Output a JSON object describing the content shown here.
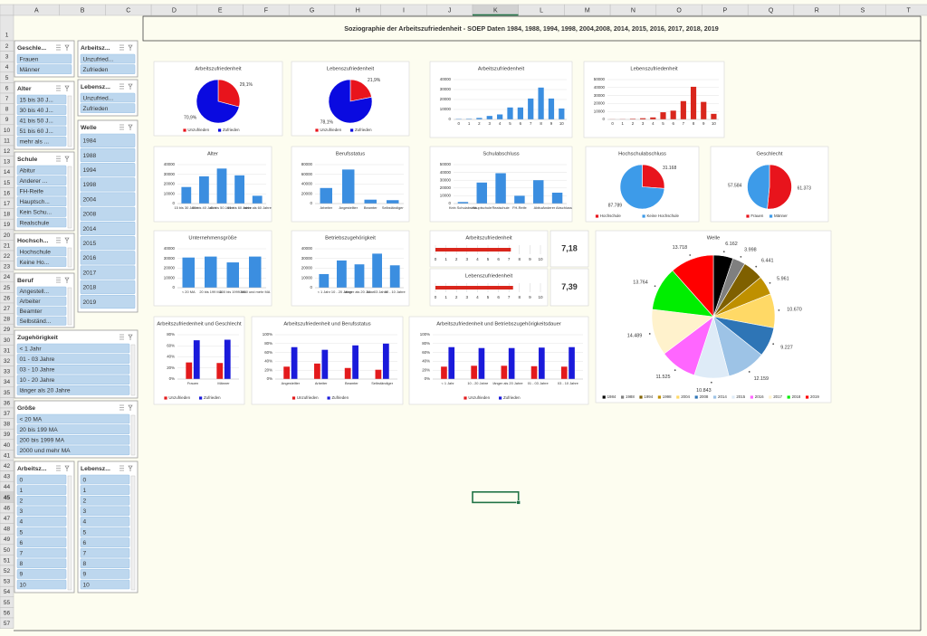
{
  "sheet": {
    "columns": [
      "A",
      "B",
      "C",
      "D",
      "E",
      "F",
      "G",
      "H",
      "I",
      "J",
      "K",
      "L",
      "M",
      "N",
      "O",
      "P",
      "Q",
      "R",
      "S",
      "T"
    ],
    "rows": [
      1,
      2,
      3,
      4,
      5,
      6,
      7,
      8,
      9,
      10,
      11,
      12,
      13,
      14,
      15,
      16,
      17,
      18,
      19,
      20,
      21,
      22,
      23,
      24,
      25,
      26,
      27,
      28,
      29,
      30,
      31,
      32,
      33,
      34,
      35,
      36,
      37,
      38,
      39,
      40,
      41,
      42,
      43,
      44,
      45,
      46,
      47,
      48,
      49,
      50,
      51,
      52,
      53,
      54,
      55,
      56,
      57
    ],
    "title": "Soziographie der Arbeitszufriedenheit - SOEP Daten 1984, 1988, 1994, 1998, 2004,2008, 2014, 2015, 2016, 2017, 2018, 2019"
  },
  "slicers": [
    {
      "title": "Geschle...",
      "items": [
        "Frauen",
        "Männer"
      ]
    },
    {
      "title": "Arbeitsz...",
      "items": [
        "Unzufried...",
        "Zufrieden"
      ]
    },
    {
      "title": "Alter",
      "items": [
        "15 bis 30 J...",
        "30 bis 40 J...",
        "41 bis 50 J...",
        "51 bis 60 J...",
        "mehr als ..."
      ]
    },
    {
      "title": "Lebensz...",
      "items": [
        "Unzufried...",
        "Zufrieden"
      ]
    },
    {
      "title": "Welle",
      "items": [
        "1984",
        "1988",
        "1994",
        "1998",
        "2004",
        "2008",
        "2014",
        "2015",
        "2016",
        "2017",
        "2018",
        "2019"
      ]
    },
    {
      "title": "Schule",
      "items": [
        "Abitur",
        "Anderer ...",
        "FH-Reife",
        "Hauptsch...",
        "Kein Schu...",
        "Realschule"
      ]
    },
    {
      "title": "Hochsch...",
      "items": [
        "Hochschule",
        "Keine Ho..."
      ]
    },
    {
      "title": "Beruf",
      "items": [
        "Angestell...",
        "Arbeiter",
        "Beamter",
        "Selbständ..."
      ]
    },
    {
      "title": "Zugehörigkeit",
      "items": [
        "< 1 Jahr",
        "01 - 03 Jahre",
        "03 - 10 Jahre",
        "10 - 20 Jahre",
        "länger als 20 Jahre"
      ]
    },
    {
      "title": "Größe",
      "items": [
        "< 20 MA",
        "20 bis 199 MA",
        "200 bis 1999 MA",
        "2000 und mehr MA"
      ]
    },
    {
      "title": "Arbeitsz...",
      "items": [
        "0",
        "1",
        "2",
        "3",
        "4",
        "5",
        "6",
        "7",
        "8",
        "9",
        "10"
      ]
    },
    {
      "title": "Lebensz...",
      "items": [
        "0",
        "1",
        "2",
        "3",
        "4",
        "5",
        "6",
        "7",
        "8",
        "9",
        "10"
      ]
    }
  ],
  "chart_data": [
    {
      "type": "pie",
      "title": "Arbeitszufriedenheit",
      "categories": [
        "Unzufrieden",
        "Zufrieden"
      ],
      "values": [
        29.1,
        70.9
      ],
      "value_labels": [
        "29,1%",
        "70,9%"
      ],
      "colors": [
        "#e8141c",
        "#0a0ae0"
      ],
      "legend": true
    },
    {
      "type": "pie",
      "title": "Lebenszufriedenheit",
      "categories": [
        "Unzufrieden",
        "Zufrieden"
      ],
      "values": [
        21.9,
        78.1
      ],
      "value_labels": [
        "21,9%",
        "78,1%"
      ],
      "colors": [
        "#e8141c",
        "#0a0ae0"
      ],
      "legend": true
    },
    {
      "type": "bar",
      "title": "Arbeitszufriedenheit",
      "categories": [
        0,
        1,
        2,
        3,
        4,
        5,
        6,
        7,
        8,
        9,
        10
      ],
      "values": [
        500,
        600,
        1500,
        3500,
        5000,
        12000,
        12000,
        21000,
        32000,
        21000,
        11000
      ],
      "color": "#3b8ee0",
      "ylim": [
        0,
        40000
      ],
      "yticks": [
        0,
        10000,
        20000,
        30000,
        40000
      ],
      "grid": true
    },
    {
      "type": "bar",
      "title": "Lebenszufriedenheit",
      "categories": [
        0,
        1,
        2,
        3,
        4,
        5,
        6,
        7,
        8,
        9,
        10
      ],
      "values": [
        200,
        300,
        800,
        1500,
        2500,
        9000,
        11000,
        23000,
        41000,
        22000,
        7000
      ],
      "color": "#d9261c",
      "ylim": [
        0,
        50000
      ],
      "yticks": [
        0,
        10000,
        20000,
        30000,
        40000,
        50000
      ],
      "grid": true
    },
    {
      "type": "bar",
      "title": "Alter",
      "categories": [
        "15 bis 30 Jahre",
        "30 bis 40 Jahre",
        "41 bis 50 Jahre",
        "51 bis 60 Jahre",
        "mehr als 60 Jahre"
      ],
      "values": [
        17000,
        28000,
        36000,
        29000,
        8000
      ],
      "color": "#3b8ee0",
      "ylim": [
        0,
        40000
      ],
      "yticks": [
        0,
        10000,
        20000,
        30000,
        40000
      ],
      "grid": true
    },
    {
      "type": "bar",
      "title": "Berufsstatus",
      "categories": [
        "Arbeiter",
        "Angestellter",
        "Beamter",
        "Selbständiger"
      ],
      "values": [
        32000,
        70000,
        8000,
        7000
      ],
      "color": "#3b8ee0",
      "ylim": [
        0,
        80000
      ],
      "yticks": [
        0,
        20000,
        40000,
        60000,
        80000
      ],
      "grid": true
    },
    {
      "type": "bar",
      "title": "Schulabschluss",
      "categories": [
        "Kein Schulabschl.",
        "Hauptschule",
        "Realschule",
        "FH-Reife",
        "Abitur",
        "Anderer Abschluss"
      ],
      "values": [
        2000,
        27000,
        39000,
        10000,
        30000,
        14000
      ],
      "color": "#3b8ee0",
      "ylim": [
        0,
        50000
      ],
      "yticks": [
        0,
        10000,
        20000,
        30000,
        40000,
        50000
      ],
      "grid": true
    },
    {
      "type": "pie",
      "title": "Hochschulabschluss",
      "categories": [
        "Hochschule",
        "Keine Hochschule"
      ],
      "values": [
        31168,
        87789
      ],
      "value_labels": [
        "31.168",
        "87.789"
      ],
      "colors": [
        "#e8141c",
        "#3d9be9"
      ],
      "legend": true
    },
    {
      "type": "pie",
      "title": "Geschlecht",
      "categories": [
        "Frauen",
        "Männer"
      ],
      "values": [
        61373,
        57584
      ],
      "value_labels": [
        "61.373",
        "57.584"
      ],
      "colors": [
        "#e8141c",
        "#3d9be9"
      ],
      "legend": true
    },
    {
      "type": "bar",
      "title": "Unternehmensgröße",
      "categories": [
        "< 20 MA",
        "20 bis 199 MA",
        "200 bis 1999 MA",
        "2000 und mehr MA"
      ],
      "values": [
        31000,
        32000,
        26000,
        32000
      ],
      "color": "#3b8ee0",
      "ylim": [
        0,
        40000
      ],
      "yticks": [
        0,
        10000,
        20000,
        30000,
        40000
      ],
      "grid": true
    },
    {
      "type": "bar",
      "title": "Betriebszugehörigkeit",
      "categories": [
        "< 1 Jahr",
        "10 - 20 Jahre",
        "länger als 20 Jahre",
        "01 - 03 Jahre",
        "03 - 10 Jahre"
      ],
      "values": [
        14000,
        28000,
        24000,
        35000,
        23000
      ],
      "color": "#3b8ee0",
      "ylim": [
        0,
        40000
      ],
      "yticks": [
        0,
        10000,
        20000,
        30000,
        40000
      ],
      "grid": true
    },
    {
      "type": "gauge",
      "title": "Arbeitszufriedenheit",
      "values": [
        7.18
      ],
      "value_labels": [
        "7,18"
      ],
      "color": "#d9261c",
      "xlim": [
        0,
        10
      ],
      "xticks": [
        0,
        1,
        2,
        3,
        4,
        5,
        6,
        7,
        8,
        9,
        10
      ]
    },
    {
      "type": "gauge",
      "title": "Lebenszufriedenheit",
      "values": [
        7.39
      ],
      "value_labels": [
        "7,39"
      ],
      "color": "#d9261c",
      "xlim": [
        0,
        10
      ],
      "xticks": [
        0,
        1,
        2,
        3,
        4,
        5,
        6,
        7,
        8,
        9,
        10
      ]
    },
    {
      "type": "pie",
      "title": "Welle",
      "categories": [
        1984,
        1988,
        1994,
        1998,
        2004,
        2008,
        2014,
        2015,
        2016,
        2017,
        2018,
        2019
      ],
      "values": [
        6162,
        3998,
        6441,
        5961,
        10670,
        9227,
        12159,
        10843,
        11525,
        14489,
        13764,
        13718
      ],
      "value_labels": [
        "6.162",
        "3.998",
        "6.441",
        "5.961",
        "10.670",
        "9.227",
        "12.159",
        "10.843",
        "11.525",
        "14.489",
        "13.764",
        "13.718"
      ],
      "colors": [
        "#000000",
        "#7f7f7f",
        "#7f6000",
        "#bf9000",
        "#ffd966",
        "#2e75b6",
        "#9dc3e6",
        "#deebf7",
        "#ff66ff",
        "#fff2cc",
        "#00ee00",
        "#ff0000"
      ],
      "legend": true
    },
    {
      "type": "bar",
      "title": "Arbeitszufriedenheit und Geschlecht",
      "categories": [
        "Frauen",
        "Männer"
      ],
      "series": [
        {
          "name": "Unzufrieden",
          "color": "#e31a1c",
          "values": [
            30,
            29
          ]
        },
        {
          "name": "Zufrieden",
          "color": "#1a1adb",
          "values": [
            70,
            71
          ]
        }
      ],
      "ylim": [
        0,
        80
      ],
      "yticks": [
        {
          "value": 0,
          "label": "0%"
        },
        {
          "value": 20,
          "label": "20%"
        },
        {
          "value": 40,
          "label": "40%"
        },
        {
          "value": 60,
          "label": "60%"
        },
        {
          "value": 80,
          "label": "80%"
        }
      ],
      "grid": true,
      "legend": true
    },
    {
      "type": "bar",
      "title": "Arbeitszufriedenheit und Berufsstatus",
      "categories": [
        "Angestellter",
        "Arbeiter",
        "Beamter",
        "Selbständiger"
      ],
      "series": [
        {
          "name": "Unzufrieden",
          "color": "#e31a1c",
          "values": [
            28,
            35,
            25,
            21
          ]
        },
        {
          "name": "Zufrieden",
          "color": "#1a1adb",
          "values": [
            72,
            66,
            76,
            80
          ]
        }
      ],
      "ylim": [
        0,
        100
      ],
      "yticks": [
        {
          "value": 0,
          "label": "0%"
        },
        {
          "value": 20,
          "label": "20%"
        },
        {
          "value": 40,
          "label": "40%"
        },
        {
          "value": 60,
          "label": "60%"
        },
        {
          "value": 80,
          "label": "80%"
        },
        {
          "value": 100,
          "label": "100%"
        }
      ],
      "grid": true,
      "legend": true
    },
    {
      "type": "bar",
      "title": "Arbeitszufriedenheit und Betriebszugehörigkeitsdauer",
      "categories": [
        "< 1 Jahr",
        "10 - 20 Jahre",
        "länger als 20 Jahre",
        "01 - 03 Jahre",
        "03 - 10 Jahre"
      ],
      "series": [
        {
          "name": "Unzufrieden",
          "color": "#e31a1c",
          "values": [
            28,
            30,
            30,
            29,
            28
          ]
        },
        {
          "name": "Zufrieden",
          "color": "#1a1adb",
          "values": [
            72,
            70,
            70,
            71,
            72
          ]
        }
      ],
      "ylim": [
        0,
        100
      ],
      "yticks": [
        {
          "value": 0,
          "label": "0%"
        },
        {
          "value": 20,
          "label": "20%"
        },
        {
          "value": 40,
          "label": "40%"
        },
        {
          "value": 60,
          "label": "60%"
        },
        {
          "value": 80,
          "label": "80%"
        },
        {
          "value": 100,
          "label": "100%"
        }
      ],
      "grid": true,
      "legend": true
    }
  ]
}
